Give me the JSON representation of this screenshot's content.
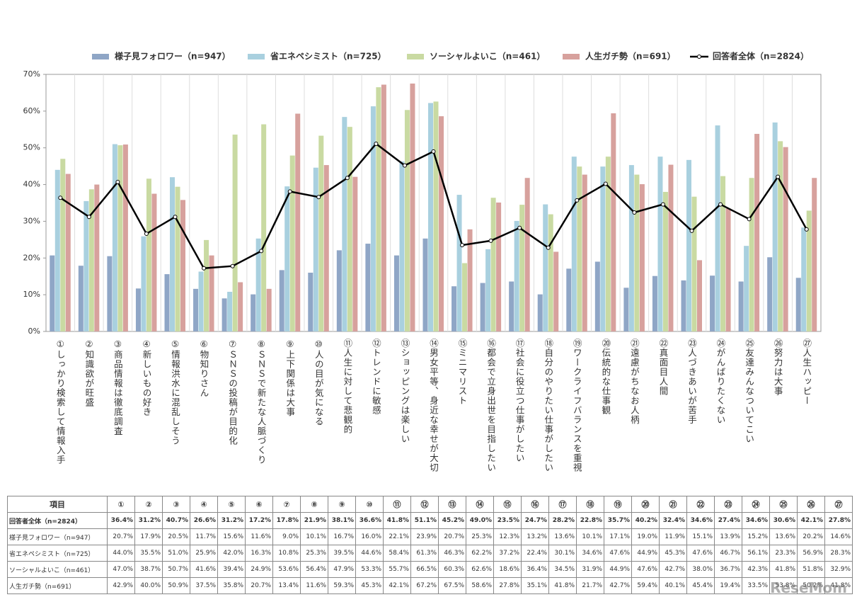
{
  "chart_data": {
    "type": "bar",
    "categories": [
      "①しっかり検索して情報入手",
      "②知識欲が旺盛",
      "③商品情報は徹底調査",
      "④新しいもの好き",
      "⑤情報洪水に混乱しそう",
      "⑥物知りさん",
      "⑦ＳＮＳの投稿が目的化",
      "⑧ＳＮＳで新たな人脈づくり",
      "⑨上下関係は大事",
      "⑩人の目が気になる",
      "⑪人生に対して悲観的",
      "⑫トレンドに敏感",
      "⑬ショッピングは楽しい",
      "⑭男女平等、身近な幸せが大切",
      "⑮ミニマリスト",
      "⑯都会で立身出世を目指したい",
      "⑰社会に役立つ仕事がしたい",
      "⑱自分のやりたい仕事がしたい",
      "⑲ワークライフバランスを重視",
      "⑳伝統的な仕事観",
      "㉑遠慮がちなお人柄",
      "㉒真面目人間",
      "㉓人づきあいが苦手",
      "㉔がんばりたくない",
      "㉕友達みんなついてこい",
      "㉖努力は大事",
      "㉗人生ハッピー"
    ],
    "series": [
      {
        "name": "様子見フォロワー（n=947）",
        "type": "bar",
        "color": "#8fa6c6",
        "values": [
          20.7,
          17.9,
          20.5,
          11.7,
          15.6,
          11.6,
          9.0,
          10.1,
          16.7,
          16.0,
          22.1,
          23.9,
          20.7,
          25.3,
          12.3,
          13.2,
          13.6,
          10.1,
          17.1,
          19.0,
          11.9,
          15.1,
          13.9,
          15.2,
          13.6,
          20.2,
          14.6
        ],
        "value_labels": [
          "20.7%",
          "17.9%",
          "20.5%",
          "11.7%",
          "15.6%",
          "11.6%",
          "9.0%",
          "10.1%",
          "16.7%",
          "16.0%",
          "22.1%",
          "23.9%",
          "20.7%",
          "25.3%",
          "12.3%",
          "13.2%",
          "13.6%",
          "10.1%",
          "17.1%",
          "19.0%",
          "11.9%",
          "15.1%",
          "13.9%",
          "15.2%",
          "13.6%",
          "20.2%",
          "14.6%"
        ]
      },
      {
        "name": "省エネペシミスト（n=725）",
        "type": "bar",
        "color": "#a9d0df",
        "values": [
          44.0,
          35.5,
          51.0,
          25.9,
          42.0,
          16.3,
          10.8,
          25.3,
          39.5,
          44.6,
          58.4,
          61.3,
          46.3,
          62.2,
          37.2,
          22.4,
          30.1,
          34.6,
          47.6,
          44.9,
          45.3,
          47.6,
          46.7,
          56.1,
          23.3,
          56.9,
          28.3
        ],
        "value_labels": [
          "44.0%",
          "35.5%",
          "51.0%",
          "25.9%",
          "42.0%",
          "16.3%",
          "10.8%",
          "25.3%",
          "39.5%",
          "44.6%",
          "58.4%",
          "61.3%",
          "46.3%",
          "62.2%",
          "37.2%",
          "22.4%",
          "30.1%",
          "34.6%",
          "47.6%",
          "44.9%",
          "45.3%",
          "47.6%",
          "46.7%",
          "56.1%",
          "23.3%",
          "56.9%",
          "28.3%"
        ]
      },
      {
        "name": "ソーシャルよいこ（n=461）",
        "type": "bar",
        "color": "#c9daa2",
        "values": [
          47.0,
          38.7,
          50.7,
          41.6,
          39.4,
          24.9,
          53.6,
          56.4,
          47.9,
          53.3,
          55.7,
          66.5,
          60.3,
          62.6,
          18.6,
          36.4,
          34.5,
          31.9,
          44.9,
          47.6,
          42.7,
          38.0,
          36.7,
          42.3,
          41.8,
          51.8,
          32.9
        ],
        "value_labels": [
          "47.0%",
          "38.7%",
          "50.7%",
          "41.6%",
          "39.4%",
          "24.9%",
          "53.6%",
          "56.4%",
          "47.9%",
          "53.3%",
          "55.7%",
          "66.5%",
          "60.3%",
          "62.6%",
          "18.6%",
          "36.4%",
          "34.5%",
          "31.9%",
          "44.9%",
          "47.6%",
          "42.7%",
          "38.0%",
          "36.7%",
          "42.3%",
          "41.8%",
          "51.8%",
          "32.9%"
        ]
      },
      {
        "name": "人生ガチ勢（n=691）",
        "type": "bar",
        "color": "#d7a19d",
        "values": [
          42.9,
          40.0,
          50.9,
          37.5,
          35.8,
          20.7,
          13.4,
          11.6,
          59.3,
          45.3,
          42.1,
          67.2,
          67.5,
          58.6,
          27.8,
          35.1,
          41.8,
          21.7,
          42.7,
          59.4,
          40.1,
          45.4,
          19.4,
          33.5,
          53.8,
          50.2,
          41.8
        ],
        "value_labels": [
          "42.9%",
          "40.0%",
          "50.9%",
          "37.5%",
          "35.8%",
          "20.7%",
          "13.4%",
          "11.6%",
          "59.3%",
          "45.3%",
          "42.1%",
          "67.2%",
          "67.5%",
          "58.6%",
          "27.8%",
          "35.1%",
          "41.8%",
          "21.7%",
          "42.7%",
          "59.4%",
          "40.1%",
          "45.4%",
          "19.4%",
          "33.5%",
          "53.8%",
          "50.2%",
          "41.8%"
        ]
      },
      {
        "name": "回答者全体（n=2824）",
        "type": "line",
        "color": "#000000",
        "values": [
          36.4,
          31.2,
          40.7,
          26.6,
          31.2,
          17.2,
          17.8,
          21.9,
          38.1,
          36.6,
          41.8,
          51.1,
          45.2,
          49.0,
          23.5,
          24.7,
          28.2,
          22.8,
          35.7,
          40.2,
          32.4,
          34.6,
          27.4,
          34.6,
          30.6,
          42.1,
          27.8
        ],
        "value_labels": [
          "36.4%",
          "31.2%",
          "40.7%",
          "26.6%",
          "31.2%",
          "17.2%",
          "17.8%",
          "21.9%",
          "38.1%",
          "36.6%",
          "41.8%",
          "51.1%",
          "45.2%",
          "49.0%",
          "23.5%",
          "24.7%",
          "28.2%",
          "22.8%",
          "35.7%",
          "40.2%",
          "32.4%",
          "34.6%",
          "27.4%",
          "34.6%",
          "30.6%",
          "42.1%",
          "27.8%"
        ]
      }
    ],
    "ylim": [
      0,
      70
    ],
    "yticks": [
      {
        "value": 0,
        "label": "0%"
      },
      {
        "value": 10,
        "label": "10%"
      },
      {
        "value": 20,
        "label": "20%"
      },
      {
        "value": 30,
        "label": "30%"
      },
      {
        "value": 40,
        "label": "40%"
      },
      {
        "value": 50,
        "label": "50%"
      },
      {
        "value": 60,
        "label": "60%"
      },
      {
        "value": 70,
        "label": "70%"
      }
    ],
    "grid": false,
    "legend": "top"
  },
  "table": {
    "header": "項目",
    "columns": [
      "①",
      "②",
      "③",
      "④",
      "⑤",
      "⑥",
      "⑦",
      "⑧",
      "⑨",
      "⑩",
      "⑪",
      "⑫",
      "⑬",
      "⑭",
      "⑮",
      "⑯",
      "⑰",
      "⑱",
      "⑲",
      "⑳",
      "㉑",
      "㉒",
      "㉓",
      "㉔",
      "㉕",
      "㉖",
      "㉗"
    ]
  },
  "watermark": "ReseMom"
}
